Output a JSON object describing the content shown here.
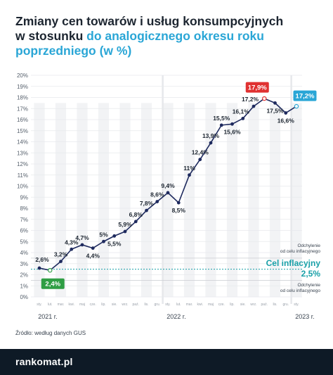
{
  "title": {
    "line1": "Zmiany cen towarów i usług konsumpcyjnych",
    "line2_plain": "w stosunku ",
    "line2_highlight": "do analogicznego okresu roku",
    "line3_highlight": "poprzedniego (w %)"
  },
  "source": "Źródło: według danych GUS",
  "logo": "rankomat.pl",
  "colors": {
    "line": "#1e2a5e",
    "accent": "#2aa6d6",
    "highlight_red": "#e03131",
    "highlight_green": "#2f9e44",
    "target_teal": "#19a0a8",
    "band": "#f2f3f5"
  },
  "chart_data": {
    "type": "line",
    "ylim": [
      0,
      20
    ],
    "y_ticks": [
      "0%",
      "1%",
      "2%",
      "3%",
      "4%",
      "5%",
      "6%",
      "7%",
      "8%",
      "9%",
      "10%",
      "11%",
      "12%",
      "13%",
      "14%",
      "15%",
      "16%",
      "17%",
      "18%",
      "19%",
      "20%"
    ],
    "x_ticks": [
      "sty.",
      "lut.",
      "mar.",
      "kwi.",
      "maj",
      "cze.",
      "lip.",
      "sie.",
      "wrz.",
      "paź.",
      "lis.",
      "gru.",
      "sty.",
      "lut.",
      "mar.",
      "kwi.",
      "maj",
      "cze.",
      "lip.",
      "sie.",
      "wrz.",
      "paź.",
      "lis.",
      "gru.",
      "sty."
    ],
    "year_labels": [
      {
        "label": "2021 r.",
        "index": 0
      },
      {
        "label": "2022 r.",
        "index": 12
      },
      {
        "label": "2023 r.",
        "index": 24
      }
    ],
    "values": [
      2.6,
      2.4,
      3.2,
      4.3,
      4.7,
      4.4,
      5.0,
      5.5,
      5.9,
      6.8,
      7.8,
      8.6,
      9.4,
      8.5,
      11.0,
      12.4,
      13.9,
      15.5,
      15.6,
      16.1,
      17.2,
      17.9,
      17.5,
      16.6,
      17.2
    ],
    "data_labels": [
      "2,6%",
      "2,4%",
      "3,2%",
      "4,3%",
      "4,7%",
      "4,4%",
      "5%",
      "5,5%",
      "5,9%",
      "6,8%",
      "7,8%",
      "8,6%",
      "9,4%",
      "8,5%",
      "11%",
      "12,4%",
      "13,9%",
      "15,5%",
      "15,6%",
      "16,1%",
      "17,2%",
      "17,9%",
      "17,5%",
      "16,6%",
      "17,2%"
    ],
    "highlighted": {
      "min_index": 1,
      "max_index": 21,
      "last_index": 24
    },
    "target": {
      "value": 2.5,
      "upper": 3.5,
      "lower": 1.5,
      "label": "Cel inflacyjny",
      "value_label": "2,5%",
      "upper_label": "Odchylenie od celu inflacyjnego",
      "lower_label": "Odchylenie od celu inflacyjnego"
    }
  }
}
